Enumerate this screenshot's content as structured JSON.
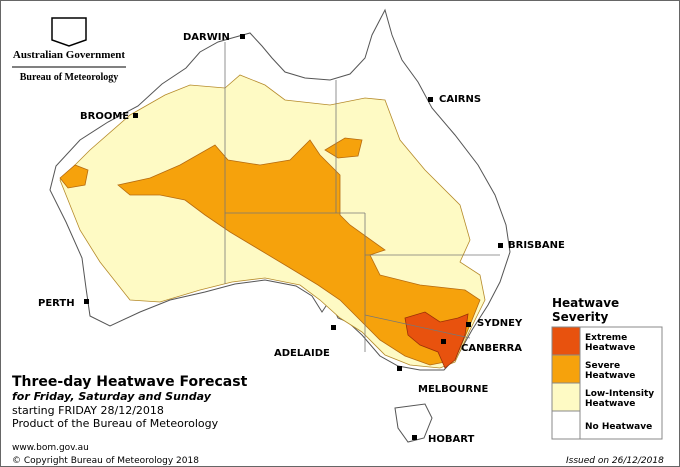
{
  "logo": {
    "line1": "Australian Government",
    "line2": "Bureau of Meteorology"
  },
  "cities": {
    "darwin": "DARWIN",
    "cairns": "CAIRNS",
    "broome": "BROOME",
    "brisbane": "BRISBANE",
    "perth": "PERTH",
    "sydney": "SYDNEY",
    "adelaide": "ADELAIDE",
    "canberra": "CANBERRA",
    "melbourne": "MELBOURNE",
    "hobart": "HOBART"
  },
  "legend": {
    "title": [
      "Heatwave",
      "Severity"
    ],
    "items": [
      {
        "label": [
          "Extreme",
          "Heatwave"
        ],
        "color": "#e8520e"
      },
      {
        "label": [
          "Severe",
          "Heatwave"
        ],
        "color": "#f6a20c"
      },
      {
        "label": [
          "Low-Intensity",
          "Heatwave"
        ],
        "color": "#fefac4"
      },
      {
        "label": [
          "No Heatwave"
        ],
        "color": "#ffffff"
      }
    ]
  },
  "title": "Three-day Heatwave Forecast",
  "subtitle": "for Friday, Saturday and Sunday",
  "starting": "starting FRIDAY 28/12/2018",
  "product": "Product of the Bureau of Meteorology",
  "website": "www.bom.gov.au",
  "copyright": "© Copyright Bureau of Meteorology 2018",
  "issued": "Issued on 26/12/2018"
}
